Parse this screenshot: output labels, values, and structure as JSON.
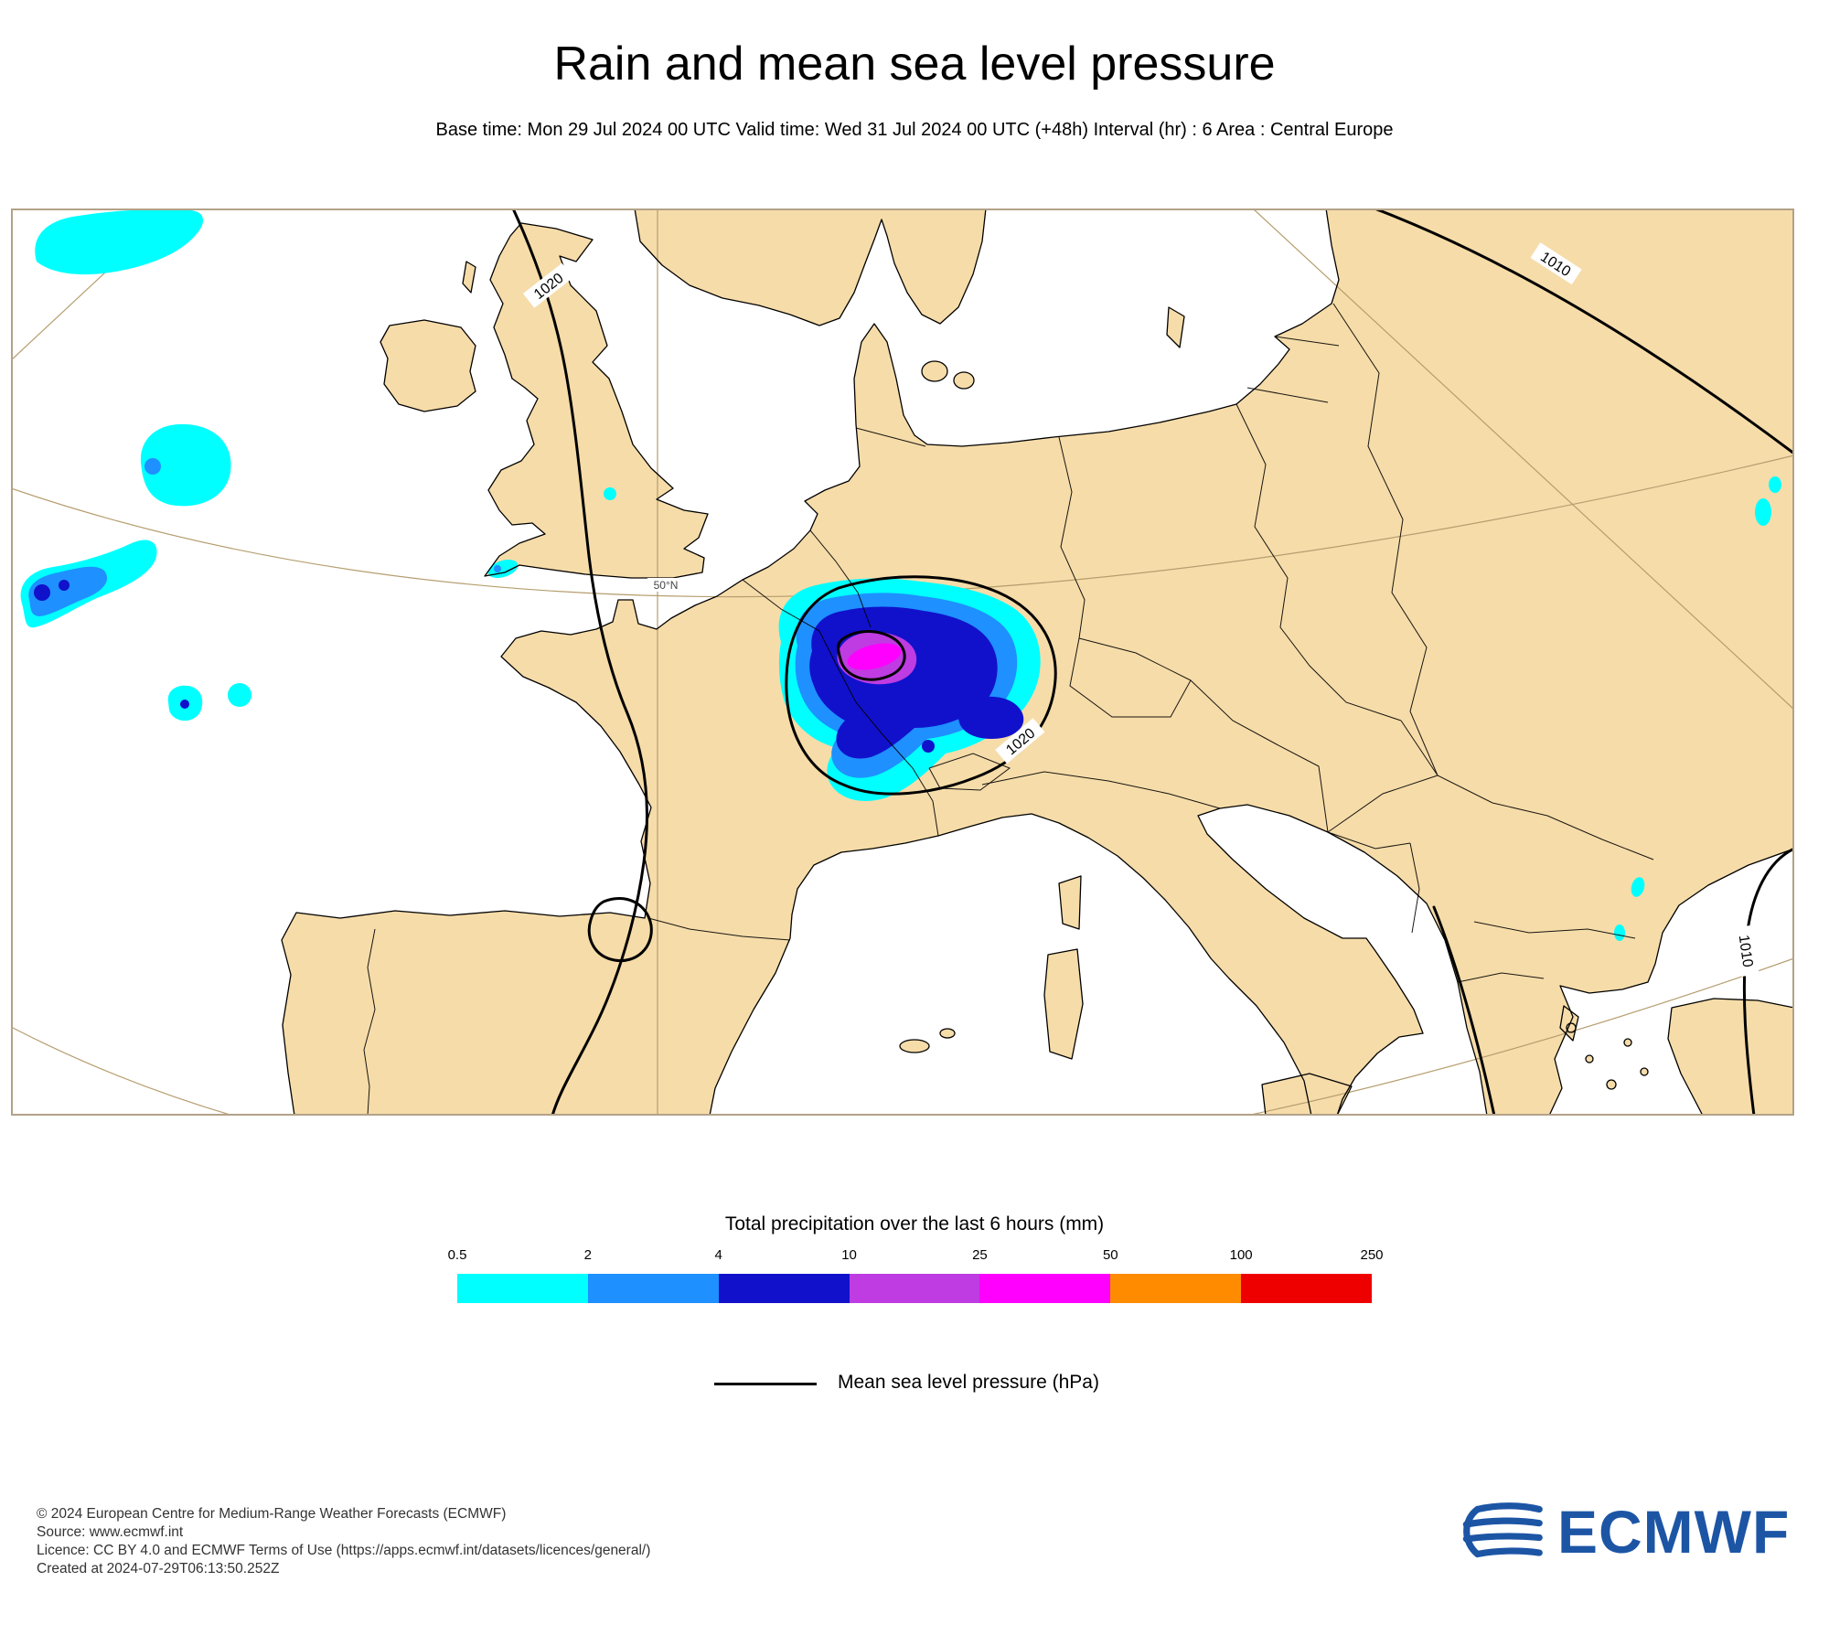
{
  "title": "Rain and mean sea level pressure",
  "subtitle": "Base time: Mon 29 Jul 2024 00 UTC Valid time: Wed 31 Jul 2024 00 UTC (+48h) Interval (hr) : 6 Area : Central Europe",
  "map": {
    "isobar_label_1020_nw": "1020",
    "isobar_label_1020_alps": "1020",
    "isobar_label_1010_ne": "1010",
    "isobar_label_1010_se": "1010",
    "parallel_label": "50°N",
    "colors": {
      "land": "#F6DCA9",
      "sea": "#FFFFFF",
      "graticule": "#b59d6e",
      "frame": "#b3a287",
      "coastline": "#000000",
      "isobar": "#000000"
    }
  },
  "legend": {
    "precip_title": "Total precipitation over the last 6 hours (mm)",
    "ticks": [
      "0.5",
      "2",
      "4",
      "10",
      "25",
      "50",
      "100",
      "250"
    ],
    "colors": [
      "#00FFFF",
      "#1E90FF",
      "#1111CC",
      "#BE3CE1",
      "#FF00FF",
      "#FF8C00",
      "#EE0000"
    ],
    "mslp_label": "Mean sea level pressure (hPa)",
    "mslp_line_color": "#000000"
  },
  "footer": {
    "lines": [
      "© 2024 European Centre for Medium-Range Weather Forecasts (ECMWF)",
      "Source: www.ecmwf.int",
      "Licence: CC BY 4.0 and ECMWF Terms of Use (https://apps.ecmwf.int/datasets/licences/general/)",
      "Created at 2024-07-29T06:13:50.252Z"
    ]
  },
  "branding": {
    "logo_text": "ECMWF",
    "logo_color": "#1d55a5"
  }
}
